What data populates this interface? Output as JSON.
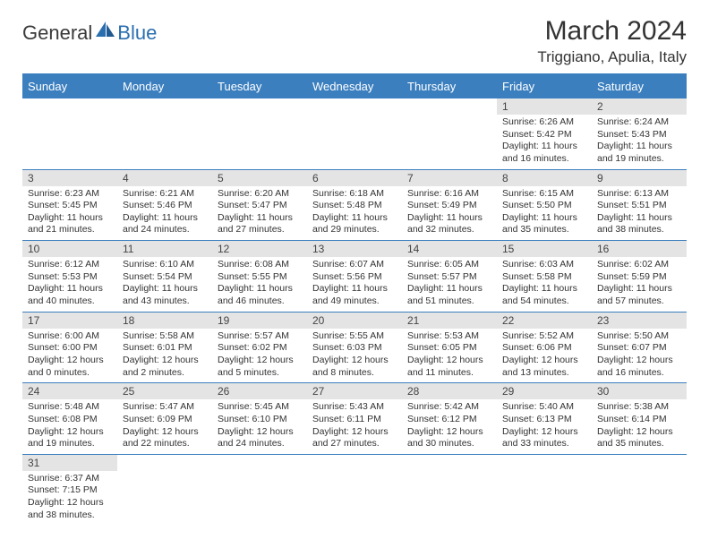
{
  "logo": {
    "text1": "General",
    "text2": "Blue"
  },
  "title": "March 2024",
  "location": "Triggiano, Apulia, Italy",
  "colors": {
    "header_bg": "#3b7fbf",
    "daynum_bg": "#e4e4e4",
    "text": "#333333",
    "page_bg": "#ffffff"
  },
  "weekdays": [
    "Sunday",
    "Monday",
    "Tuesday",
    "Wednesday",
    "Thursday",
    "Friday",
    "Saturday"
  ],
  "cells": [
    {
      "day": "",
      "lines": []
    },
    {
      "day": "",
      "lines": []
    },
    {
      "day": "",
      "lines": []
    },
    {
      "day": "",
      "lines": []
    },
    {
      "day": "",
      "lines": []
    },
    {
      "day": "1",
      "lines": [
        "Sunrise: 6:26 AM",
        "Sunset: 5:42 PM",
        "Daylight: 11 hours",
        "and 16 minutes."
      ]
    },
    {
      "day": "2",
      "lines": [
        "Sunrise: 6:24 AM",
        "Sunset: 5:43 PM",
        "Daylight: 11 hours",
        "and 19 minutes."
      ]
    },
    {
      "day": "3",
      "lines": [
        "Sunrise: 6:23 AM",
        "Sunset: 5:45 PM",
        "Daylight: 11 hours",
        "and 21 minutes."
      ]
    },
    {
      "day": "4",
      "lines": [
        "Sunrise: 6:21 AM",
        "Sunset: 5:46 PM",
        "Daylight: 11 hours",
        "and 24 minutes."
      ]
    },
    {
      "day": "5",
      "lines": [
        "Sunrise: 6:20 AM",
        "Sunset: 5:47 PM",
        "Daylight: 11 hours",
        "and 27 minutes."
      ]
    },
    {
      "day": "6",
      "lines": [
        "Sunrise: 6:18 AM",
        "Sunset: 5:48 PM",
        "Daylight: 11 hours",
        "and 29 minutes."
      ]
    },
    {
      "day": "7",
      "lines": [
        "Sunrise: 6:16 AM",
        "Sunset: 5:49 PM",
        "Daylight: 11 hours",
        "and 32 minutes."
      ]
    },
    {
      "day": "8",
      "lines": [
        "Sunrise: 6:15 AM",
        "Sunset: 5:50 PM",
        "Daylight: 11 hours",
        "and 35 minutes."
      ]
    },
    {
      "day": "9",
      "lines": [
        "Sunrise: 6:13 AM",
        "Sunset: 5:51 PM",
        "Daylight: 11 hours",
        "and 38 minutes."
      ]
    },
    {
      "day": "10",
      "lines": [
        "Sunrise: 6:12 AM",
        "Sunset: 5:53 PM",
        "Daylight: 11 hours",
        "and 40 minutes."
      ]
    },
    {
      "day": "11",
      "lines": [
        "Sunrise: 6:10 AM",
        "Sunset: 5:54 PM",
        "Daylight: 11 hours",
        "and 43 minutes."
      ]
    },
    {
      "day": "12",
      "lines": [
        "Sunrise: 6:08 AM",
        "Sunset: 5:55 PM",
        "Daylight: 11 hours",
        "and 46 minutes."
      ]
    },
    {
      "day": "13",
      "lines": [
        "Sunrise: 6:07 AM",
        "Sunset: 5:56 PM",
        "Daylight: 11 hours",
        "and 49 minutes."
      ]
    },
    {
      "day": "14",
      "lines": [
        "Sunrise: 6:05 AM",
        "Sunset: 5:57 PM",
        "Daylight: 11 hours",
        "and 51 minutes."
      ]
    },
    {
      "day": "15",
      "lines": [
        "Sunrise: 6:03 AM",
        "Sunset: 5:58 PM",
        "Daylight: 11 hours",
        "and 54 minutes."
      ]
    },
    {
      "day": "16",
      "lines": [
        "Sunrise: 6:02 AM",
        "Sunset: 5:59 PM",
        "Daylight: 11 hours",
        "and 57 minutes."
      ]
    },
    {
      "day": "17",
      "lines": [
        "Sunrise: 6:00 AM",
        "Sunset: 6:00 PM",
        "Daylight: 12 hours",
        "and 0 minutes."
      ]
    },
    {
      "day": "18",
      "lines": [
        "Sunrise: 5:58 AM",
        "Sunset: 6:01 PM",
        "Daylight: 12 hours",
        "and 2 minutes."
      ]
    },
    {
      "day": "19",
      "lines": [
        "Sunrise: 5:57 AM",
        "Sunset: 6:02 PM",
        "Daylight: 12 hours",
        "and 5 minutes."
      ]
    },
    {
      "day": "20",
      "lines": [
        "Sunrise: 5:55 AM",
        "Sunset: 6:03 PM",
        "Daylight: 12 hours",
        "and 8 minutes."
      ]
    },
    {
      "day": "21",
      "lines": [
        "Sunrise: 5:53 AM",
        "Sunset: 6:05 PM",
        "Daylight: 12 hours",
        "and 11 minutes."
      ]
    },
    {
      "day": "22",
      "lines": [
        "Sunrise: 5:52 AM",
        "Sunset: 6:06 PM",
        "Daylight: 12 hours",
        "and 13 minutes."
      ]
    },
    {
      "day": "23",
      "lines": [
        "Sunrise: 5:50 AM",
        "Sunset: 6:07 PM",
        "Daylight: 12 hours",
        "and 16 minutes."
      ]
    },
    {
      "day": "24",
      "lines": [
        "Sunrise: 5:48 AM",
        "Sunset: 6:08 PM",
        "Daylight: 12 hours",
        "and 19 minutes."
      ]
    },
    {
      "day": "25",
      "lines": [
        "Sunrise: 5:47 AM",
        "Sunset: 6:09 PM",
        "Daylight: 12 hours",
        "and 22 minutes."
      ]
    },
    {
      "day": "26",
      "lines": [
        "Sunrise: 5:45 AM",
        "Sunset: 6:10 PM",
        "Daylight: 12 hours",
        "and 24 minutes."
      ]
    },
    {
      "day": "27",
      "lines": [
        "Sunrise: 5:43 AM",
        "Sunset: 6:11 PM",
        "Daylight: 12 hours",
        "and 27 minutes."
      ]
    },
    {
      "day": "28",
      "lines": [
        "Sunrise: 5:42 AM",
        "Sunset: 6:12 PM",
        "Daylight: 12 hours",
        "and 30 minutes."
      ]
    },
    {
      "day": "29",
      "lines": [
        "Sunrise: 5:40 AM",
        "Sunset: 6:13 PM",
        "Daylight: 12 hours",
        "and 33 minutes."
      ]
    },
    {
      "day": "30",
      "lines": [
        "Sunrise: 5:38 AM",
        "Sunset: 6:14 PM",
        "Daylight: 12 hours",
        "and 35 minutes."
      ]
    },
    {
      "day": "31",
      "lines": [
        "Sunrise: 6:37 AM",
        "Sunset: 7:15 PM",
        "Daylight: 12 hours",
        "and 38 minutes."
      ]
    },
    {
      "day": "",
      "lines": []
    },
    {
      "day": "",
      "lines": []
    },
    {
      "day": "",
      "lines": []
    },
    {
      "day": "",
      "lines": []
    },
    {
      "day": "",
      "lines": []
    },
    {
      "day": "",
      "lines": []
    }
  ]
}
